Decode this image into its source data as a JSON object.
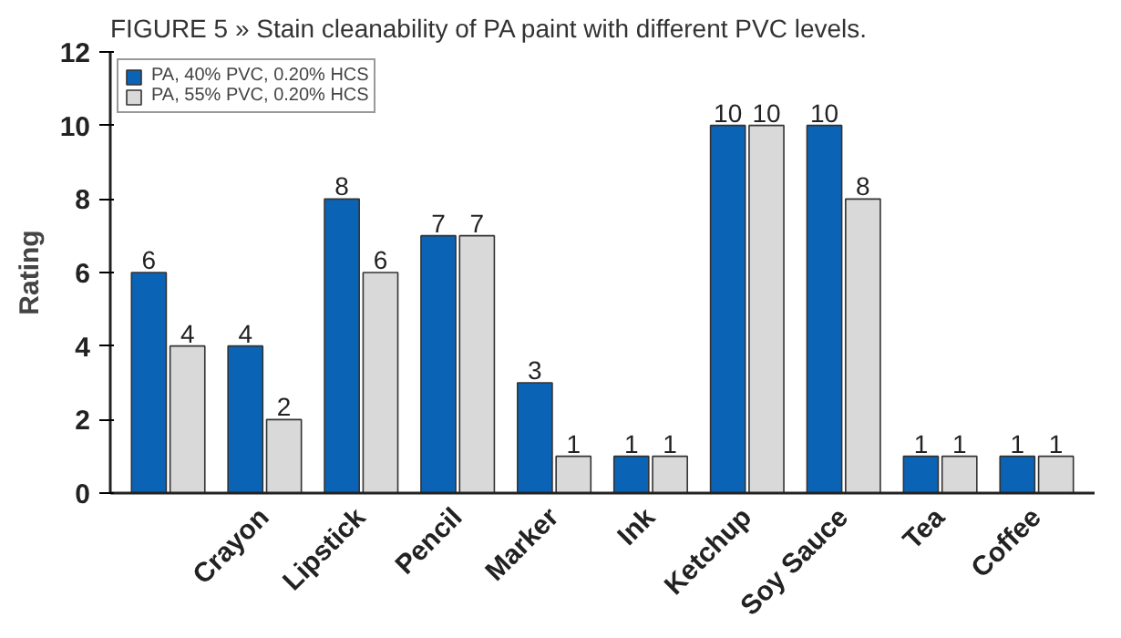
{
  "chart_data": {
    "type": "bar",
    "title": "FIGURE 5 » Stain cleanability of PA paint with different PVC levels.",
    "ylabel": "Rating",
    "categories": [
      null,
      "Crayon",
      "Lipstick",
      "Pencil",
      "Marker",
      "Ink",
      "Ketchup",
      "Soy Sauce",
      "Tea",
      "Coffee"
    ],
    "series": [
      {
        "name": "PA, 40% PVC, 0.20% HCS",
        "color": "#0b63b5",
        "values": [
          6,
          4,
          8,
          7,
          3,
          1,
          10,
          10,
          1,
          1
        ]
      },
      {
        "name": "PA, 55% PVC, 0.20% HCS",
        "color": "#d9d9d9",
        "values": [
          4,
          2,
          6,
          7,
          1,
          1,
          10,
          8,
          1,
          1
        ]
      }
    ],
    "data_labels": true,
    "ylim": [
      0,
      12
    ],
    "yticks": [
      0,
      2,
      4,
      6,
      8,
      10,
      12
    ],
    "legend": "top left"
  }
}
